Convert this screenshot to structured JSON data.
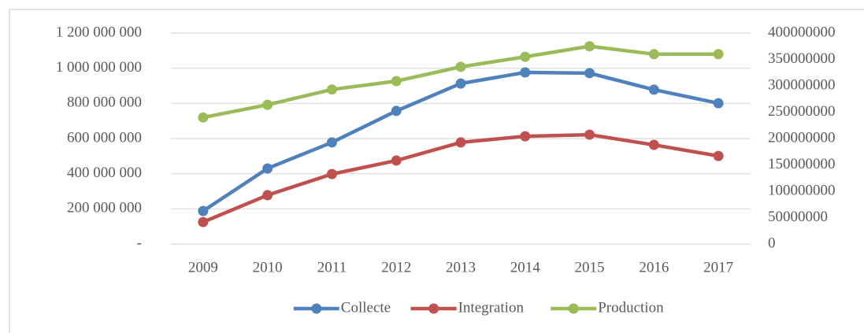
{
  "chart_data": {
    "type": "line",
    "categories": [
      "2009",
      "2010",
      "2011",
      "2012",
      "2013",
      "2014",
      "2015",
      "2016",
      "2017"
    ],
    "series": [
      {
        "name": "Collecte",
        "color": "#4f81bd",
        "values": [
          188000000,
          430000000,
          578000000,
          757000000,
          913000000,
          976000000,
          972000000,
          878000000,
          801000000
        ]
      },
      {
        "name": "Integration",
        "color": "#c0504d",
        "values": [
          125000000,
          278000000,
          398000000,
          475000000,
          578000000,
          613000000,
          622000000,
          564000000,
          501000000
        ]
      },
      {
        "name": "Production",
        "color": "#9bbb59",
        "axis": "y2",
        "values": [
          240000000,
          264000000,
          293000000,
          309000000,
          336000000,
          355000000,
          375000000,
          360000000,
          360000000
        ]
      }
    ],
    "ylim": [
      0,
      1200000000
    ],
    "yticks": [
      {
        "value": 0,
        "label": "-"
      },
      {
        "value": 200000000,
        "label": "200 000 000"
      },
      {
        "value": 400000000,
        "label": "400 000 000"
      },
      {
        "value": 600000000,
        "label": "600 000 000"
      },
      {
        "value": 800000000,
        "label": "800 000 000"
      },
      {
        "value": 1000000000,
        "label": "1 000 000 000"
      },
      {
        "value": 1200000000,
        "label": "1 200 000 000"
      }
    ],
    "y2lim": [
      0,
      400000000
    ],
    "y2ticks": [
      0,
      50000000,
      100000000,
      150000000,
      200000000,
      250000000,
      300000000,
      350000000,
      400000000
    ],
    "grid": true,
    "legend": "bottom"
  }
}
